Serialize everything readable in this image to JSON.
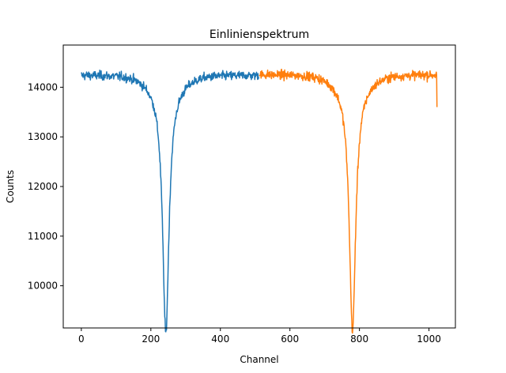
{
  "chart_data": {
    "type": "line",
    "title": "Einlinienspektrum",
    "xlabel": "Channel",
    "ylabel": "Counts",
    "xlim": [
      -52,
      1076
    ],
    "ylim": [
      9150,
      14850
    ],
    "xticks": [
      0,
      200,
      400,
      600,
      800,
      1000
    ],
    "yticks": [
      10000,
      11000,
      12000,
      13000,
      14000
    ],
    "grid": false,
    "legend": "none",
    "series": [
      {
        "color": "#1f77b4",
        "x_range": [
          0,
          511
        ],
        "baseline": 14250,
        "noise": 110,
        "dip_center": 243,
        "dip_min": 9300,
        "dip_width": 14
      },
      {
        "color": "#ff7f0e",
        "x_range": [
          512,
          1023
        ],
        "baseline": 14260,
        "noise": 110,
        "dip_center": 780,
        "dip_min": 9350,
        "dip_width": 14,
        "last_value": 13600
      }
    ]
  }
}
